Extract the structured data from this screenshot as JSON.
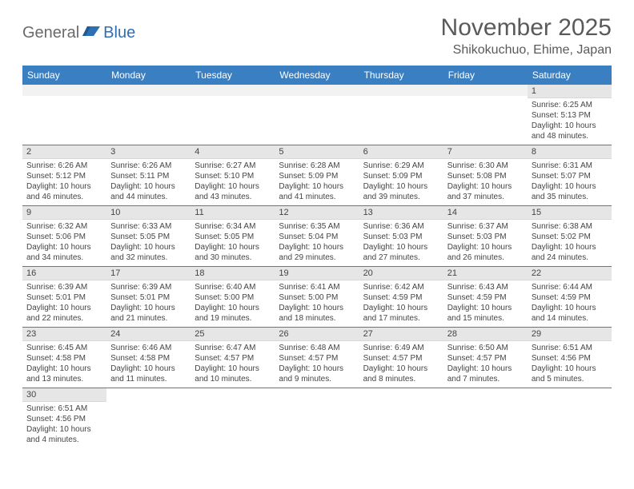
{
  "logo": {
    "part1": "General",
    "part2": "Blue"
  },
  "title": "November 2025",
  "location": "Shikokuchuo, Ehime, Japan",
  "colors": {
    "header_bg": "#3a7fc2",
    "header_text": "#ffffff",
    "daynum_bg": "#e6e6e6",
    "divider": "#3a7fc2",
    "logo_gray": "#6a6a6a",
    "logo_blue": "#2f6fb3",
    "text": "#444444",
    "background": "#ffffff"
  },
  "typography": {
    "title_fontsize": 30,
    "location_fontsize": 16,
    "dayheader_fontsize": 12,
    "daynum_fontsize": 11,
    "body_fontsize": 10,
    "font_family": "Arial"
  },
  "day_headers": [
    "Sunday",
    "Monday",
    "Tuesday",
    "Wednesday",
    "Thursday",
    "Friday",
    "Saturday"
  ],
  "weeks": [
    [
      null,
      null,
      null,
      null,
      null,
      null,
      {
        "n": "1",
        "sunrise": "Sunrise: 6:25 AM",
        "sunset": "Sunset: 5:13 PM",
        "daylight": "Daylight: 10 hours and 48 minutes."
      }
    ],
    [
      {
        "n": "2",
        "sunrise": "Sunrise: 6:26 AM",
        "sunset": "Sunset: 5:12 PM",
        "daylight": "Daylight: 10 hours and 46 minutes."
      },
      {
        "n": "3",
        "sunrise": "Sunrise: 6:26 AM",
        "sunset": "Sunset: 5:11 PM",
        "daylight": "Daylight: 10 hours and 44 minutes."
      },
      {
        "n": "4",
        "sunrise": "Sunrise: 6:27 AM",
        "sunset": "Sunset: 5:10 PM",
        "daylight": "Daylight: 10 hours and 43 minutes."
      },
      {
        "n": "5",
        "sunrise": "Sunrise: 6:28 AM",
        "sunset": "Sunset: 5:09 PM",
        "daylight": "Daylight: 10 hours and 41 minutes."
      },
      {
        "n": "6",
        "sunrise": "Sunrise: 6:29 AM",
        "sunset": "Sunset: 5:09 PM",
        "daylight": "Daylight: 10 hours and 39 minutes."
      },
      {
        "n": "7",
        "sunrise": "Sunrise: 6:30 AM",
        "sunset": "Sunset: 5:08 PM",
        "daylight": "Daylight: 10 hours and 37 minutes."
      },
      {
        "n": "8",
        "sunrise": "Sunrise: 6:31 AM",
        "sunset": "Sunset: 5:07 PM",
        "daylight": "Daylight: 10 hours and 35 minutes."
      }
    ],
    [
      {
        "n": "9",
        "sunrise": "Sunrise: 6:32 AM",
        "sunset": "Sunset: 5:06 PM",
        "daylight": "Daylight: 10 hours and 34 minutes."
      },
      {
        "n": "10",
        "sunrise": "Sunrise: 6:33 AM",
        "sunset": "Sunset: 5:05 PM",
        "daylight": "Daylight: 10 hours and 32 minutes."
      },
      {
        "n": "11",
        "sunrise": "Sunrise: 6:34 AM",
        "sunset": "Sunset: 5:05 PM",
        "daylight": "Daylight: 10 hours and 30 minutes."
      },
      {
        "n": "12",
        "sunrise": "Sunrise: 6:35 AM",
        "sunset": "Sunset: 5:04 PM",
        "daylight": "Daylight: 10 hours and 29 minutes."
      },
      {
        "n": "13",
        "sunrise": "Sunrise: 6:36 AM",
        "sunset": "Sunset: 5:03 PM",
        "daylight": "Daylight: 10 hours and 27 minutes."
      },
      {
        "n": "14",
        "sunrise": "Sunrise: 6:37 AM",
        "sunset": "Sunset: 5:03 PM",
        "daylight": "Daylight: 10 hours and 26 minutes."
      },
      {
        "n": "15",
        "sunrise": "Sunrise: 6:38 AM",
        "sunset": "Sunset: 5:02 PM",
        "daylight": "Daylight: 10 hours and 24 minutes."
      }
    ],
    [
      {
        "n": "16",
        "sunrise": "Sunrise: 6:39 AM",
        "sunset": "Sunset: 5:01 PM",
        "daylight": "Daylight: 10 hours and 22 minutes."
      },
      {
        "n": "17",
        "sunrise": "Sunrise: 6:39 AM",
        "sunset": "Sunset: 5:01 PM",
        "daylight": "Daylight: 10 hours and 21 minutes."
      },
      {
        "n": "18",
        "sunrise": "Sunrise: 6:40 AM",
        "sunset": "Sunset: 5:00 PM",
        "daylight": "Daylight: 10 hours and 19 minutes."
      },
      {
        "n": "19",
        "sunrise": "Sunrise: 6:41 AM",
        "sunset": "Sunset: 5:00 PM",
        "daylight": "Daylight: 10 hours and 18 minutes."
      },
      {
        "n": "20",
        "sunrise": "Sunrise: 6:42 AM",
        "sunset": "Sunset: 4:59 PM",
        "daylight": "Daylight: 10 hours and 17 minutes."
      },
      {
        "n": "21",
        "sunrise": "Sunrise: 6:43 AM",
        "sunset": "Sunset: 4:59 PM",
        "daylight": "Daylight: 10 hours and 15 minutes."
      },
      {
        "n": "22",
        "sunrise": "Sunrise: 6:44 AM",
        "sunset": "Sunset: 4:59 PM",
        "daylight": "Daylight: 10 hours and 14 minutes."
      }
    ],
    [
      {
        "n": "23",
        "sunrise": "Sunrise: 6:45 AM",
        "sunset": "Sunset: 4:58 PM",
        "daylight": "Daylight: 10 hours and 13 minutes."
      },
      {
        "n": "24",
        "sunrise": "Sunrise: 6:46 AM",
        "sunset": "Sunset: 4:58 PM",
        "daylight": "Daylight: 10 hours and 11 minutes."
      },
      {
        "n": "25",
        "sunrise": "Sunrise: 6:47 AM",
        "sunset": "Sunset: 4:57 PM",
        "daylight": "Daylight: 10 hours and 10 minutes."
      },
      {
        "n": "26",
        "sunrise": "Sunrise: 6:48 AM",
        "sunset": "Sunset: 4:57 PM",
        "daylight": "Daylight: 10 hours and 9 minutes."
      },
      {
        "n": "27",
        "sunrise": "Sunrise: 6:49 AM",
        "sunset": "Sunset: 4:57 PM",
        "daylight": "Daylight: 10 hours and 8 minutes."
      },
      {
        "n": "28",
        "sunrise": "Sunrise: 6:50 AM",
        "sunset": "Sunset: 4:57 PM",
        "daylight": "Daylight: 10 hours and 7 minutes."
      },
      {
        "n": "29",
        "sunrise": "Sunrise: 6:51 AM",
        "sunset": "Sunset: 4:56 PM",
        "daylight": "Daylight: 10 hours and 5 minutes."
      }
    ],
    [
      {
        "n": "30",
        "sunrise": "Sunrise: 6:51 AM",
        "sunset": "Sunset: 4:56 PM",
        "daylight": "Daylight: 10 hours and 4 minutes."
      },
      null,
      null,
      null,
      null,
      null,
      null
    ]
  ]
}
